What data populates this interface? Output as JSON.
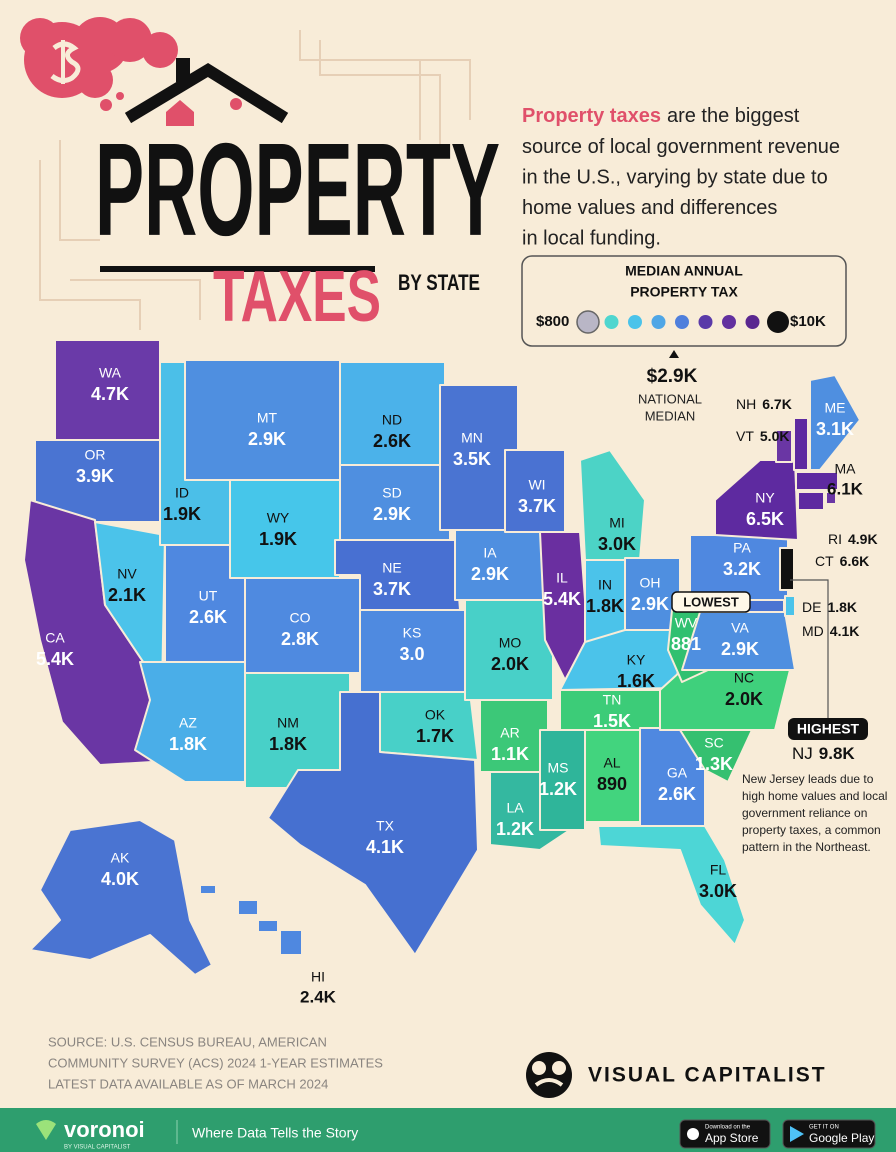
{
  "header": {
    "title": "PROPERTY",
    "subtitle": "TAXES",
    "subtitle_suffix": "BY STATE"
  },
  "intro": {
    "highlight": "Property taxes",
    "lines": [
      "are the biggest",
      "source of local government revenue",
      "in the U.S., varying by state due to",
      "home values and differences",
      "in local funding."
    ]
  },
  "legend": {
    "title": [
      "MEDIAN ANNUAL",
      "PROPERTY TAX"
    ],
    "min_label": "$800",
    "max_label": "$10K",
    "colors": [
      "#b9b6c6",
      "#4fd6cf",
      "#4bc3ea",
      "#4fa6e6",
      "#4f7fdc",
      "#5a3aa8",
      "#62309f",
      "#5a2790",
      "#111111"
    ]
  },
  "national_median": {
    "value": "$2.9K",
    "label": [
      "NATIONAL",
      "MEDIAN"
    ]
  },
  "states": [
    {
      "abbr": "WA",
      "value": "4.7K",
      "color": "#6a3aa8"
    },
    {
      "abbr": "OR",
      "value": "3.9K",
      "color": "#4a74d2"
    },
    {
      "abbr": "CA",
      "value": "5.4K",
      "color": "#6a36a4"
    },
    {
      "abbr": "NV",
      "value": "2.1K",
      "color": "#4bc3ea"
    },
    {
      "abbr": "ID",
      "value": "1.9K",
      "color": "#4bbfe8"
    },
    {
      "abbr": "MT",
      "value": "2.9K",
      "color": "#4f8fe0"
    },
    {
      "abbr": "WY",
      "value": "1.9K",
      "color": "#46c6ea"
    },
    {
      "abbr": "UT",
      "value": "2.6K",
      "color": "#4f88e0"
    },
    {
      "abbr": "AZ",
      "value": "1.8K",
      "color": "#4aaee8"
    },
    {
      "abbr": "CO",
      "value": "2.8K",
      "color": "#4f8ae0"
    },
    {
      "abbr": "NM",
      "value": "1.8K",
      "color": "#48d0c8"
    },
    {
      "abbr": "ND",
      "value": "2.6K",
      "color": "#4bb2ea"
    },
    {
      "abbr": "SD",
      "value": "2.9K",
      "color": "#4f8fe0"
    },
    {
      "abbr": "NE",
      "value": "3.7K",
      "color": "#4870d2"
    },
    {
      "abbr": "KS",
      "value": "3.0",
      "color": "#4f8ae0"
    },
    {
      "abbr": "OK",
      "value": "1.7K",
      "color": "#48d0c8"
    },
    {
      "abbr": "TX",
      "value": "4.1K",
      "color": "#4670d0"
    },
    {
      "abbr": "MN",
      "value": "3.5K",
      "color": "#4a74d2"
    },
    {
      "abbr": "IA",
      "value": "2.9K",
      "color": "#4f8fe0"
    },
    {
      "abbr": "MO",
      "value": "2.0K",
      "color": "#48d0c8"
    },
    {
      "abbr": "AR",
      "value": "1.1K",
      "color": "#3cc878"
    },
    {
      "abbr": "LA",
      "value": "1.2K",
      "color": "#34b8a0"
    },
    {
      "abbr": "WI",
      "value": "3.7K",
      "color": "#4a72d2"
    },
    {
      "abbr": "IL",
      "value": "5.4K",
      "color": "#6a2fa0"
    },
    {
      "abbr": "MS",
      "value": "1.2K",
      "color": "#2fb59a"
    },
    {
      "abbr": "AL",
      "value": "890",
      "color": "#42d47e"
    },
    {
      "abbr": "MI",
      "value": "3.0K",
      "color": "#4cd3c6"
    },
    {
      "abbr": "IN",
      "value": "1.8K",
      "color": "#4bc3ea"
    },
    {
      "abbr": "OH",
      "value": "2.9K",
      "color": "#4f8fe0"
    },
    {
      "abbr": "KY",
      "value": "1.6K",
      "color": "#4bc3ea"
    },
    {
      "abbr": "TN",
      "value": "1.5K",
      "color": "#3ccc78"
    },
    {
      "abbr": "GA",
      "value": "2.6K",
      "color": "#4f88e0"
    },
    {
      "abbr": "FL",
      "value": "3.0K",
      "color": "#4dd6d6"
    },
    {
      "abbr": "SC",
      "value": "1.3K",
      "color": "#35c070"
    },
    {
      "abbr": "NC",
      "value": "2.0K",
      "color": "#3fd07c"
    },
    {
      "abbr": "WV",
      "value": "881",
      "color": "#30c070"
    },
    {
      "abbr": "VA",
      "value": "2.9K",
      "color": "#4f8fe0"
    },
    {
      "abbr": "PA",
      "value": "3.2K",
      "color": "#4f88e0"
    },
    {
      "abbr": "NY",
      "value": "6.5K",
      "color": "#5e2aa0"
    },
    {
      "abbr": "VT",
      "value": "5.0K",
      "color": "#6a36a4"
    },
    {
      "abbr": "NH",
      "value": "6.7K",
      "color": "#5e2aa0"
    },
    {
      "abbr": "ME",
      "value": "3.1K",
      "color": "#4f8fe0"
    },
    {
      "abbr": "MA",
      "value": "6.1K",
      "color": "#5e2aa0"
    },
    {
      "abbr": "RI",
      "value": "4.9K",
      "color": "#6a36a4"
    },
    {
      "abbr": "CT",
      "value": "6.6K",
      "color": "#5e2aa0"
    },
    {
      "abbr": "NJ",
      "value": "9.8K",
      "color": "#111111"
    },
    {
      "abbr": "DE",
      "value": "1.8K",
      "color": "#4bc3ea"
    },
    {
      "abbr": "MD",
      "value": "4.1K",
      "color": "#4a74d2"
    },
    {
      "abbr": "AK",
      "value": "4.0K",
      "color": "#4a74d2"
    },
    {
      "abbr": "HI",
      "value": "2.4K",
      "color": "#4f88e0"
    }
  ],
  "callouts": {
    "lowest": "LOWEST",
    "highest": "HIGHEST",
    "note": [
      "New Jersey leads due to",
      "high home values and local",
      "government reliance on",
      "property taxes, a common",
      "pattern in the Northeast."
    ]
  },
  "source": [
    "SOURCE: U.S. CENSUS BUREAU, AMERICAN",
    "COMMUNITY SURVEY (ACS) 2024 1-YEAR ESTIMATES",
    "LATEST DATA AVAILABLE AS OF MARCH 2024"
  ],
  "brand": "VISUAL CAPITALIST",
  "footer": {
    "logo": "voronoi",
    "logo_sub": "BY VISUAL CAPITALIST",
    "tagline": "Where Data Tells the Story",
    "app_store_small": "Download on the",
    "app_store": "App Store",
    "google_play_small": "GET IT ON",
    "google_play": "Google Play"
  }
}
